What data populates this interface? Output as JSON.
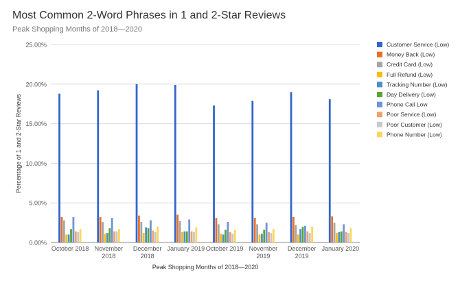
{
  "chart_data": {
    "type": "bar",
    "title": "Most Common 2-Word Phrases in 1 and 2-Star Reviews",
    "subtitle": "Peak Shopping Months of 2018—2020",
    "xlabel": "Peak Shopping Months of 2018—2020",
    "ylabel": "Percentage of 1 and 2-Star Reviews",
    "ylim": [
      0,
      0.25
    ],
    "yticks": [
      "0.00%",
      "5.00%",
      "10.00%",
      "15.00%",
      "20.00%",
      "25.00%"
    ],
    "categories": [
      [
        "October 2018"
      ],
      [
        "November",
        "2018"
      ],
      [
        "December",
        "2018"
      ],
      [
        "January 2019"
      ],
      [
        "October 2019"
      ],
      [
        "November",
        "2019"
      ],
      [
        "December",
        "2019"
      ],
      [
        "January 2020"
      ]
    ],
    "legend_position": "right",
    "grid": true,
    "series": [
      {
        "name": "Customer Service (Low)",
        "color": "#3366cc",
        "values": [
          0.188,
          0.192,
          0.2,
          0.199,
          0.173,
          0.179,
          0.19,
          0.181
        ]
      },
      {
        "name": "Money Back (Low)",
        "color": "#e8702a",
        "values": [
          0.032,
          0.032,
          0.034,
          0.035,
          0.031,
          0.031,
          0.032,
          0.033
        ]
      },
      {
        "name": "Credit Card (Low)",
        "color": "#a5a5a5",
        "values": [
          0.028,
          0.026,
          0.026,
          0.027,
          0.023,
          0.023,
          0.022,
          0.025
        ]
      },
      {
        "name": "Full Refund (Low)",
        "color": "#fbbc04",
        "values": [
          0.01,
          0.011,
          0.012,
          0.013,
          0.011,
          0.01,
          0.01,
          0.012
        ]
      },
      {
        "name": "Tracking Number (Low)",
        "color": "#4a90c8",
        "values": [
          0.01,
          0.012,
          0.019,
          0.014,
          0.01,
          0.011,
          0.017,
          0.013
        ]
      },
      {
        "name": "Day Delivery (Low)",
        "color": "#5ba43a",
        "values": [
          0.017,
          0.018,
          0.018,
          0.014,
          0.016,
          0.016,
          0.02,
          0.014
        ]
      },
      {
        "name": "Phone Call Low",
        "color": "#7093d4",
        "values": [
          0.032,
          0.031,
          0.028,
          0.029,
          0.026,
          0.025,
          0.021,
          0.023
        ]
      },
      {
        "name": "Poor Service (Low)",
        "color": "#f0a070",
        "values": [
          0.014,
          0.014,
          0.015,
          0.014,
          0.013,
          0.013,
          0.014,
          0.013
        ]
      },
      {
        "name": "Poor Customer (Low)",
        "color": "#c8c8c8",
        "values": [
          0.013,
          0.014,
          0.013,
          0.013,
          0.011,
          0.012,
          0.012,
          0.012
        ]
      },
      {
        "name": "Phone Number (Low)",
        "color": "#fcd65c",
        "values": [
          0.017,
          0.017,
          0.02,
          0.019,
          0.016,
          0.017,
          0.02,
          0.018
        ]
      }
    ]
  }
}
